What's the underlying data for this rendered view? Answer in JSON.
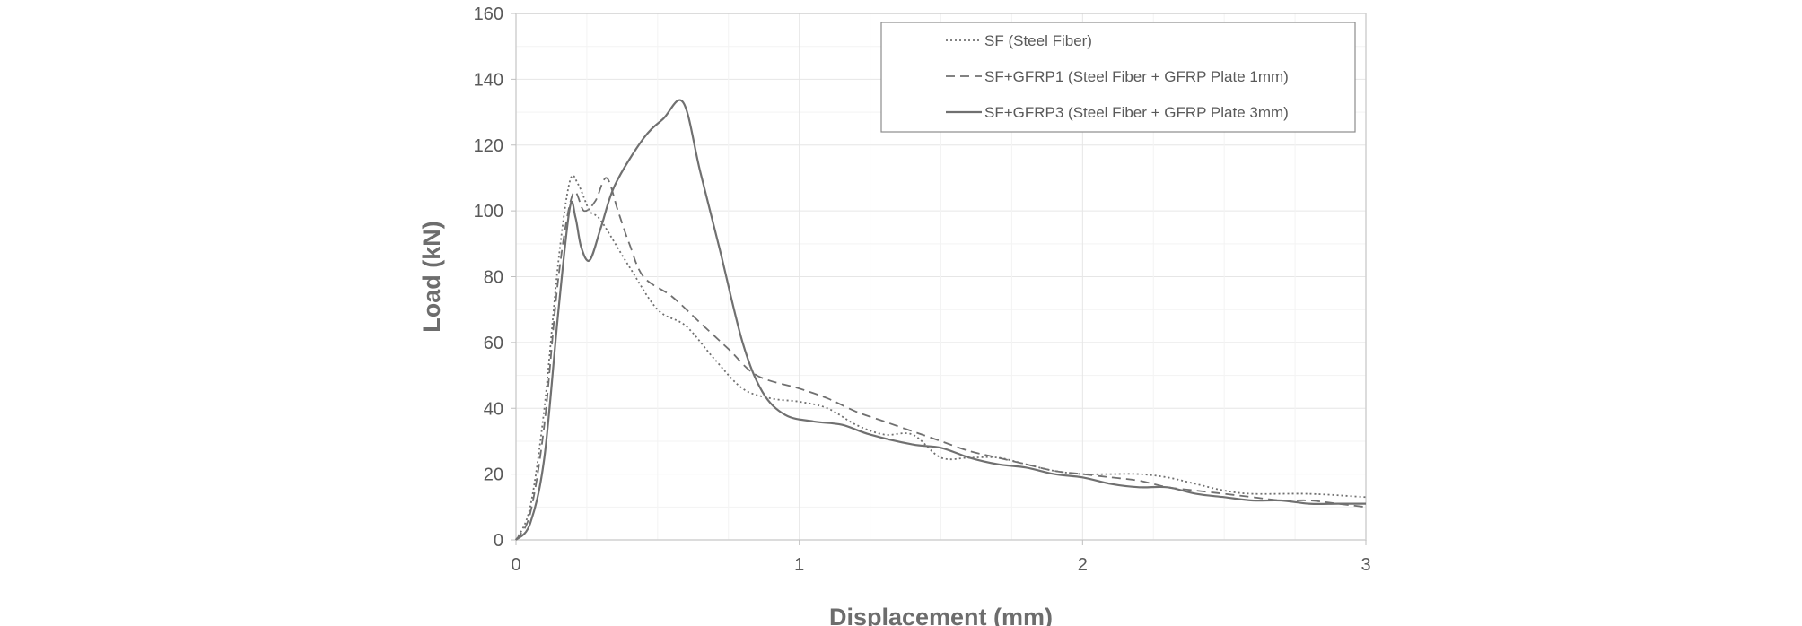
{
  "chart_data": {
    "type": "line",
    "title": "",
    "xlabel": "Displacement (mm)",
    "ylabel": "Load (kN)",
    "xlim": [
      0,
      3
    ],
    "ylim": [
      0,
      160
    ],
    "x_ticks": [
      "0",
      "1",
      "2",
      "3"
    ],
    "y_ticks": [
      "0",
      "20",
      "40",
      "60",
      "80",
      "100",
      "120",
      "140",
      "160"
    ],
    "grid": true,
    "legend_position": "top-right",
    "series": [
      {
        "name": "SF (Steel Fiber)",
        "style": "dotted",
        "color": "#707070",
        "points": [
          [
            0,
            0
          ],
          [
            0.05,
            10
          ],
          [
            0.1,
            40
          ],
          [
            0.15,
            85
          ],
          [
            0.19,
            109
          ],
          [
            0.22,
            108
          ],
          [
            0.26,
            100
          ],
          [
            0.3,
            97
          ],
          [
            0.4,
            83
          ],
          [
            0.5,
            70
          ],
          [
            0.6,
            65
          ],
          [
            0.7,
            55
          ],
          [
            0.8,
            46
          ],
          [
            0.9,
            43
          ],
          [
            1.0,
            42
          ],
          [
            1.1,
            40
          ],
          [
            1.2,
            35
          ],
          [
            1.3,
            32
          ],
          [
            1.4,
            32
          ],
          [
            1.5,
            25
          ],
          [
            1.6,
            25
          ],
          [
            1.7,
            25
          ],
          [
            1.8,
            23
          ],
          [
            1.9,
            21
          ],
          [
            2.0,
            20
          ],
          [
            2.1,
            20
          ],
          [
            2.2,
            20
          ],
          [
            2.3,
            19
          ],
          [
            2.4,
            17
          ],
          [
            2.5,
            15
          ],
          [
            2.6,
            14
          ],
          [
            2.8,
            14
          ],
          [
            3.0,
            13
          ]
        ]
      },
      {
        "name": "SF+GFRP1 (Steel Fiber + GFRP Plate 1mm)",
        "style": "dashed",
        "color": "#707070",
        "points": [
          [
            0,
            0
          ],
          [
            0.05,
            8
          ],
          [
            0.1,
            35
          ],
          [
            0.15,
            80
          ],
          [
            0.2,
            105
          ],
          [
            0.24,
            100
          ],
          [
            0.28,
            103
          ],
          [
            0.32,
            110
          ],
          [
            0.36,
            100
          ],
          [
            0.4,
            90
          ],
          [
            0.45,
            80
          ],
          [
            0.55,
            74
          ],
          [
            0.65,
            66
          ],
          [
            0.75,
            58
          ],
          [
            0.85,
            50
          ],
          [
            1.0,
            46
          ],
          [
            1.1,
            43
          ],
          [
            1.2,
            39
          ],
          [
            1.3,
            36
          ],
          [
            1.4,
            33
          ],
          [
            1.5,
            30
          ],
          [
            1.6,
            27
          ],
          [
            1.7,
            25
          ],
          [
            1.8,
            23
          ],
          [
            1.9,
            21
          ],
          [
            2.0,
            20
          ],
          [
            2.1,
            19
          ],
          [
            2.2,
            18
          ],
          [
            2.3,
            16
          ],
          [
            2.4,
            15
          ],
          [
            2.5,
            14
          ],
          [
            2.6,
            13
          ],
          [
            2.7,
            12
          ],
          [
            2.8,
            12
          ],
          [
            2.9,
            11
          ],
          [
            3.0,
            10
          ]
        ]
      },
      {
        "name": "SF+GFRP3 (Steel Fiber + GFRP Plate 3mm)",
        "style": "solid",
        "color": "#707070",
        "points": [
          [
            0,
            0
          ],
          [
            0.05,
            5
          ],
          [
            0.1,
            25
          ],
          [
            0.15,
            70
          ],
          [
            0.19,
            101
          ],
          [
            0.21,
            98
          ],
          [
            0.23,
            89
          ],
          [
            0.26,
            85
          ],
          [
            0.3,
            95
          ],
          [
            0.35,
            108
          ],
          [
            0.45,
            122
          ],
          [
            0.52,
            128
          ],
          [
            0.59,
            133
          ],
          [
            0.65,
            112
          ],
          [
            0.72,
            88
          ],
          [
            0.8,
            60
          ],
          [
            0.87,
            45
          ],
          [
            0.95,
            38
          ],
          [
            1.05,
            36
          ],
          [
            1.15,
            35
          ],
          [
            1.25,
            32
          ],
          [
            1.4,
            29
          ],
          [
            1.5,
            28
          ],
          [
            1.6,
            25
          ],
          [
            1.7,
            23
          ],
          [
            1.8,
            22
          ],
          [
            1.9,
            20
          ],
          [
            2.0,
            19
          ],
          [
            2.1,
            17
          ],
          [
            2.2,
            16
          ],
          [
            2.3,
            16
          ],
          [
            2.4,
            14
          ],
          [
            2.5,
            13
          ],
          [
            2.6,
            12
          ],
          [
            2.7,
            12
          ],
          [
            2.8,
            11
          ],
          [
            2.9,
            11
          ],
          [
            3.0,
            11
          ]
        ]
      }
    ]
  }
}
